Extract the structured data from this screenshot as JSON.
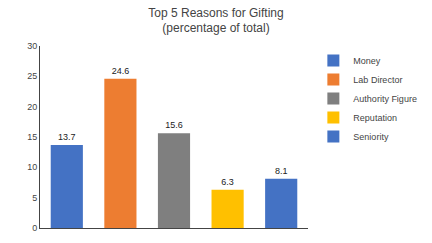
{
  "chart_data": {
    "type": "bar",
    "title": "Top 5 Reasons for Gifting\n(percentage of total)",
    "categories": [
      "Money",
      "Lab Director",
      "Authority Figure",
      "Reputation",
      "Seniority"
    ],
    "values": [
      13.7,
      24.6,
      15.6,
      6.3,
      8.1
    ],
    "colors": [
      "#4472c4",
      "#ed7d31",
      "#7f7f7f",
      "#ffc000",
      "#4472c4"
    ],
    "ylim": [
      0,
      30
    ],
    "yticks": [
      0,
      5,
      10,
      15,
      20,
      25,
      30
    ],
    "grid": false,
    "legend": "upper right",
    "data_labels": true,
    "tick_labels": "y"
  }
}
